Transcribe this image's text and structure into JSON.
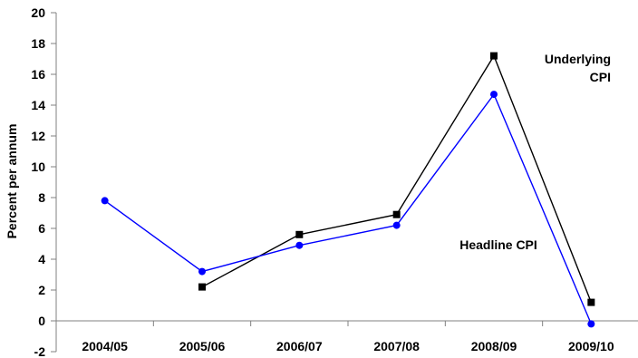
{
  "chart_data": {
    "type": "line",
    "categories": [
      "2004/05",
      "2005/06",
      "2006/07",
      "2007/08",
      "2008/09",
      "2009/10"
    ],
    "series": [
      {
        "name": "Underlying CPI",
        "values": [
          null,
          2.2,
          5.6,
          6.9,
          17.2,
          1.2
        ],
        "color": "#000000",
        "marker": "square"
      },
      {
        "name": "Headline CPI",
        "values": [
          7.8,
          3.2,
          4.9,
          6.2,
          14.7,
          -0.2
        ],
        "color": "#0000ff",
        "marker": "circle"
      }
    ],
    "ylabel": "Percent per annum",
    "xlabel": "",
    "ylim": [
      -2,
      20
    ],
    "yticks": [
      -2,
      0,
      2,
      4,
      6,
      8,
      10,
      12,
      14,
      16,
      18,
      20
    ],
    "grid": false,
    "legend": "inline labels",
    "annotations": {
      "underlying_line1": "Underlying",
      "underlying_line2": "CPI",
      "headline": "Headline CPI"
    }
  }
}
